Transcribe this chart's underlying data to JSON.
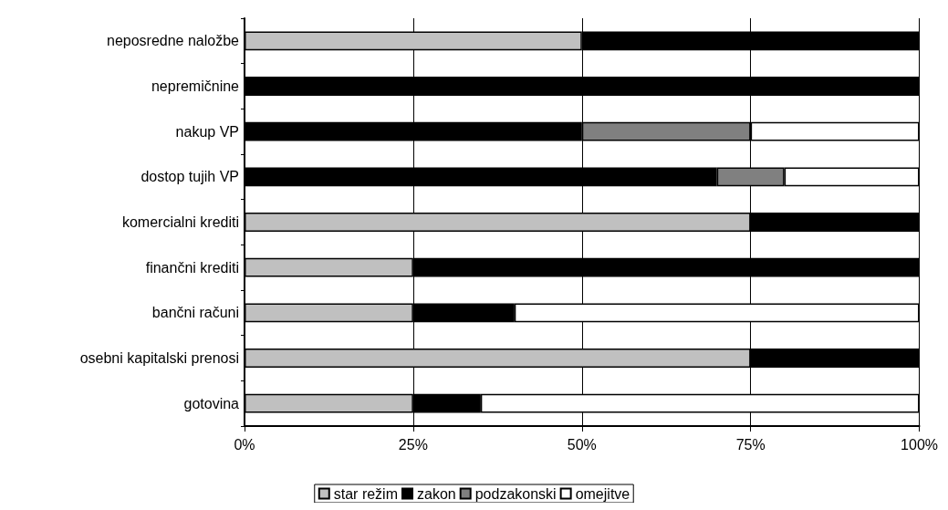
{
  "chart_data": {
    "type": "bar",
    "orientation": "horizontal",
    "stacked": true,
    "categories": [
      "neposredne naložbe",
      "nepremičnine",
      "nakup VP",
      "dostop tujih VP",
      "komercialni krediti",
      "finančni krediti",
      "bančni računi",
      "osebni kapitalski prenosi",
      "gotovina"
    ],
    "series": [
      {
        "name": "star režim",
        "color": "#c0c0c0",
        "values": [
          50,
          null,
          null,
          null,
          75,
          25,
          25,
          75,
          25
        ]
      },
      {
        "name": "zakon",
        "color": "#000000",
        "values": [
          50,
          100,
          50,
          70,
          25,
          75,
          15,
          25,
          10
        ]
      },
      {
        "name": "podzakonski",
        "color": "#808080",
        "values": [
          null,
          null,
          25,
          10,
          null,
          null,
          null,
          null,
          null
        ]
      },
      {
        "name": "omejitve",
        "color": "#ffffff",
        "values": [
          null,
          null,
          25,
          20,
          null,
          null,
          60,
          null,
          65
        ]
      }
    ],
    "xlim": [
      0,
      100
    ],
    "xticks": [
      {
        "value": 0,
        "label": "0%"
      },
      {
        "value": 25,
        "label": "25%"
      },
      {
        "value": 50,
        "label": "50%"
      },
      {
        "value": 75,
        "label": "75%"
      },
      {
        "value": 100,
        "label": "100%"
      }
    ],
    "grid": "x",
    "legend": "bottom"
  }
}
